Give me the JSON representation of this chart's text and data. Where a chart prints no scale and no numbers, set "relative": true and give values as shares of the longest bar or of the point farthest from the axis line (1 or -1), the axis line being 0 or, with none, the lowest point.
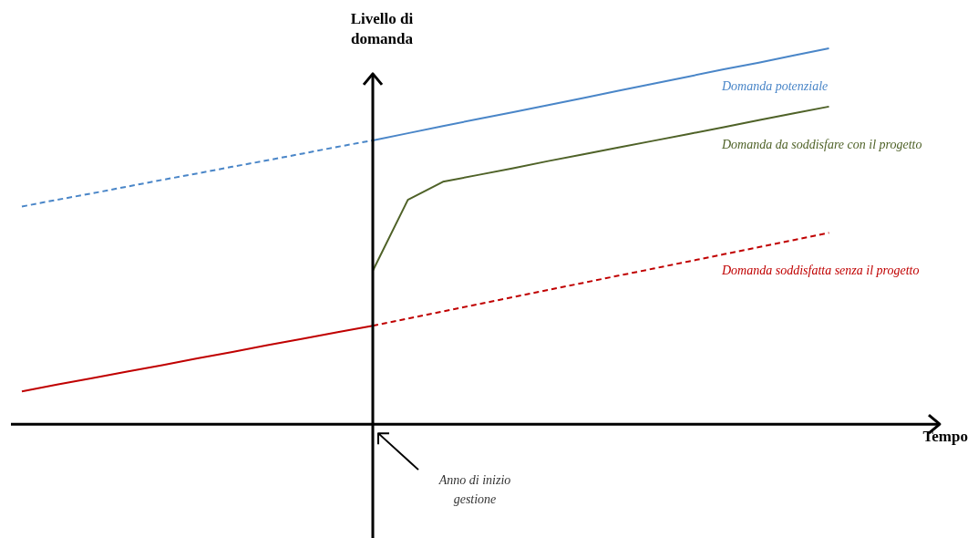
{
  "chart_data": {
    "type": "line",
    "relative": true,
    "xlabel": "Tempo",
    "ylabel": "Livello di domanda",
    "categories": [
      null,
      null,
      null,
      null,
      null,
      null,
      null,
      null,
      null,
      null,
      null,
      null,
      null,
      null,
      null,
      null,
      null,
      null,
      null,
      null,
      null,
      null,
      null,
      null
    ],
    "series": [
      {
        "name": "Domanda potenziale",
        "color": "#4a86c8",
        "line_style": "solid",
        "values": [
          null,
          null,
          null,
          null,
          null,
          null,
          null,
          null,
          null,
          null,
          0.755,
          0.774,
          0.793,
          0.812,
          0.83,
          0.849,
          0.868,
          0.887,
          0.906,
          0.925,
          0.944,
          0.962,
          0.981,
          1.0
        ]
      },
      {
        "color": "#4a86c8",
        "line_style": "dashed",
        "values": [
          0.579,
          0.597,
          0.614,
          0.632,
          0.65,
          0.667,
          0.685,
          0.702,
          0.72,
          0.738,
          0.755,
          null,
          null,
          null,
          null,
          null,
          null,
          null,
          null,
          null,
          null,
          null,
          null,
          null
        ]
      },
      {
        "name": "Domanda da soddisfare con il progetto",
        "color": "#4f6228",
        "line_style": "solid",
        "values": [
          null,
          null,
          null,
          null,
          null,
          null,
          null,
          null,
          null,
          null,
          0.408,
          0.597,
          0.645,
          0.663,
          0.681,
          0.7,
          0.718,
          0.736,
          0.754,
          0.772,
          0.79,
          0.809,
          0.827,
          0.845
        ]
      },
      {
        "name": "Domanda soddisfatta senza il progetto",
        "color": "#c00000",
        "line_style": "dashed",
        "values": [
          null,
          null,
          null,
          null,
          null,
          null,
          null,
          null,
          null,
          null,
          0.262,
          0.281,
          0.3,
          0.319,
          0.338,
          0.357,
          0.376,
          0.395,
          0.414,
          0.433,
          0.452,
          0.471,
          0.49,
          0.509
        ]
      },
      {
        "color": "#c00000",
        "line_style": "solid",
        "values": [
          0.087,
          0.105,
          0.122,
          0.14,
          0.157,
          0.175,
          0.192,
          0.21,
          0.227,
          0.245,
          0.262,
          null,
          null,
          null,
          null,
          null,
          null,
          null,
          null,
          null,
          null,
          null,
          null,
          null
        ]
      }
    ],
    "annotations": [
      "Anno di inizio gestione"
    ]
  }
}
